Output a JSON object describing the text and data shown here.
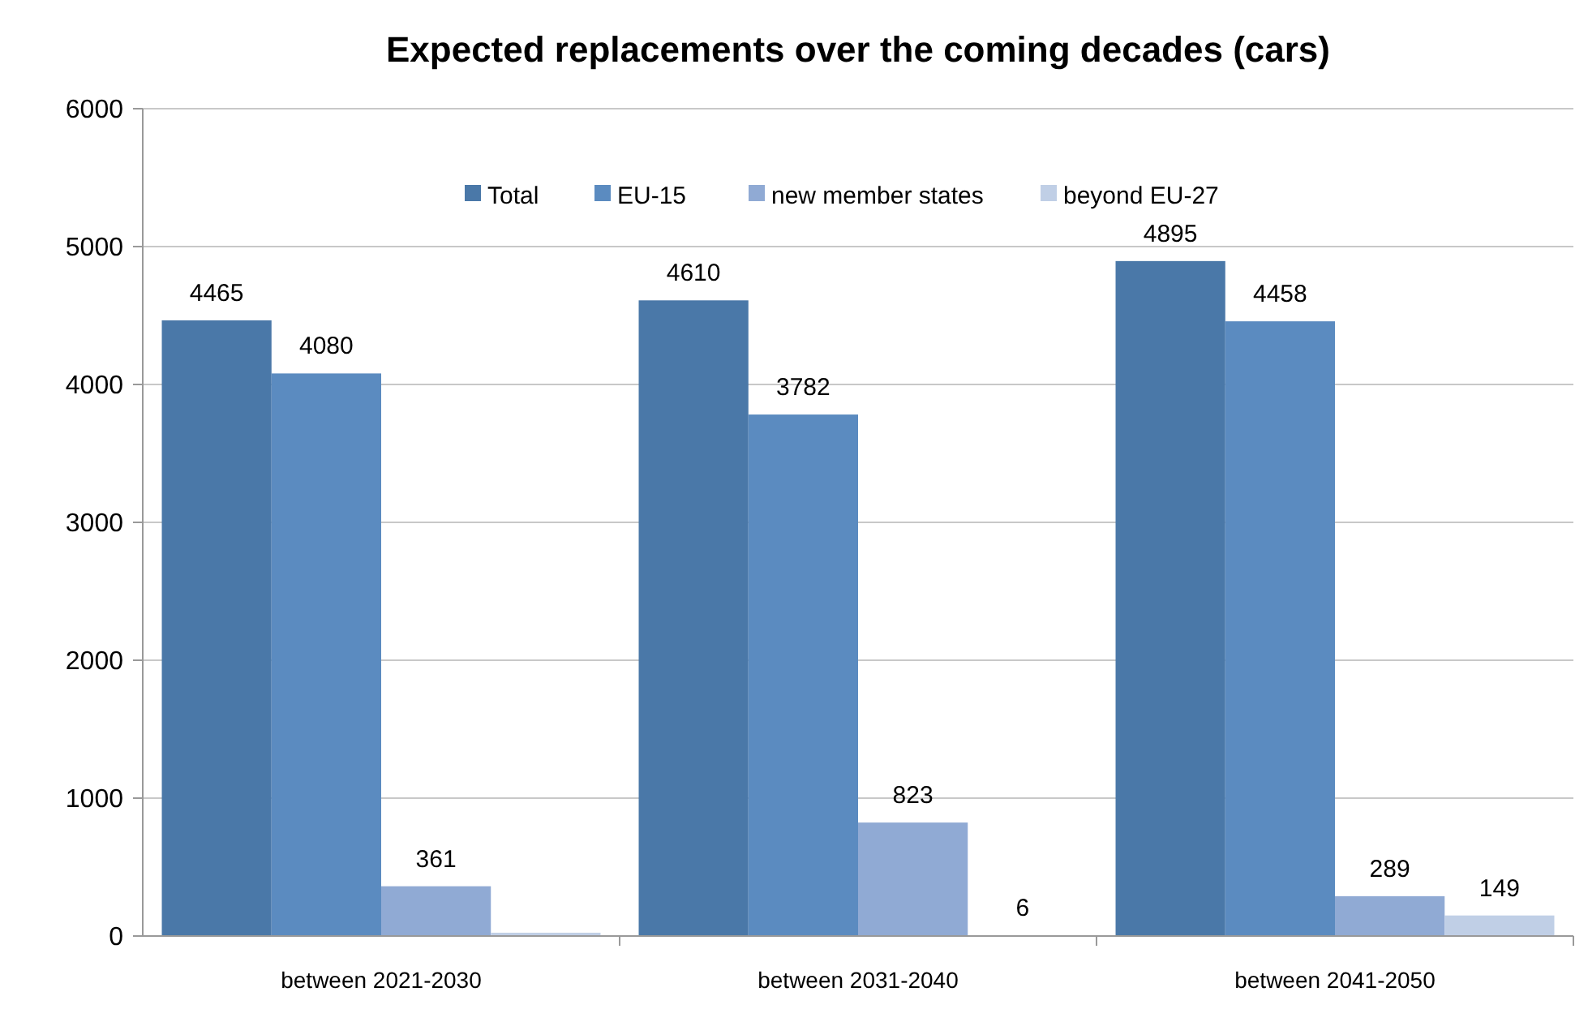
{
  "chart_data": {
    "type": "bar",
    "title": "Expected replacements over the coming decades (cars)",
    "categories": [
      "between 2021-2030",
      "between 2031-2040",
      "between 2041-2050"
    ],
    "series": [
      {
        "name": "Total",
        "color": "#4a78a8",
        "values": [
          4465,
          4610,
          4895
        ],
        "value_labels": [
          "4465",
          "4610",
          "4895"
        ]
      },
      {
        "name": "EU-15",
        "color": "#5b8bc0",
        "values": [
          4080,
          3782,
          4458
        ],
        "value_labels": [
          "4080",
          "3782",
          "4458"
        ]
      },
      {
        "name": "new member states",
        "color": "#90aad4",
        "values": [
          361,
          823,
          289
        ],
        "value_labels": [
          "361",
          "823",
          "289"
        ]
      },
      {
        "name": "beyond EU-27",
        "color": "#c0cfe6",
        "values": [
          24,
          6,
          149
        ],
        "value_labels": [
          null,
          "6",
          "149"
        ]
      }
    ],
    "ylim": [
      0,
      6000
    ],
    "yticks": [
      0,
      1000,
      2000,
      3000,
      4000,
      5000,
      6000
    ],
    "grid": "y",
    "legend": "top"
  }
}
